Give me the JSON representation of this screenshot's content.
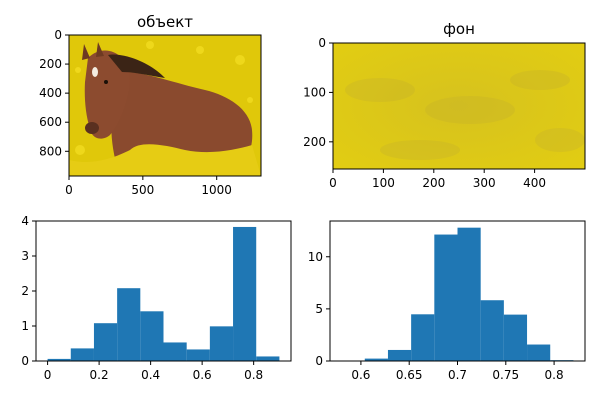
{
  "chart_data": [
    {
      "type": "image",
      "title": "объект",
      "x_ticks": [
        0,
        500,
        1000
      ],
      "y_ticks": [
        0,
        200,
        400,
        600,
        800
      ],
      "xlim": [
        0,
        1300
      ],
      "ylim": [
        970,
        0
      ],
      "colors": {
        "background": "#e0c80a",
        "animal": "#8a4a2e",
        "mane": "#3b2416",
        "blaze": "#f4ece0"
      }
    },
    {
      "type": "image",
      "title": "фон",
      "x_ticks": [
        0,
        100,
        200,
        300,
        400
      ],
      "y_ticks": [
        0,
        100,
        200
      ],
      "xlim": [
        0,
        500
      ],
      "ylim": [
        255,
        0
      ],
      "colors": {
        "background": "#d8c41a",
        "blotch": "#c2b030"
      }
    },
    {
      "type": "histogram",
      "bar_color": "#1f77b4",
      "bin_edges": [
        0.0,
        0.09,
        0.18,
        0.27,
        0.36,
        0.45,
        0.54,
        0.63,
        0.72,
        0.81,
        0.9
      ],
      "values": [
        0.06,
        0.36,
        1.08,
        2.08,
        1.42,
        0.53,
        0.33,
        0.99,
        3.83,
        0.13
      ],
      "x_ticks": [
        0.0,
        0.2,
        0.4,
        0.6,
        0.8
      ],
      "y_ticks": [
        0,
        1,
        2,
        3,
        4
      ],
      "xlim": [
        -0.045,
        0.945
      ],
      "ylim": [
        0,
        4.0
      ]
    },
    {
      "type": "histogram",
      "bar_color": "#1f77b4",
      "bin_edges": [
        0.58,
        0.604,
        0.628,
        0.652,
        0.676,
        0.7,
        0.724,
        0.748,
        0.772,
        0.796,
        0.82
      ],
      "values": [
        0.04,
        0.23,
        1.06,
        4.48,
        12.13,
        12.79,
        5.83,
        4.45,
        1.58,
        0.08
      ],
      "x_ticks": [
        0.6,
        0.65,
        0.7,
        0.75,
        0.8
      ],
      "y_ticks": [
        0,
        5,
        10
      ],
      "xlim": [
        0.568,
        0.832
      ],
      "ylim": [
        0,
        13.43
      ]
    }
  ]
}
